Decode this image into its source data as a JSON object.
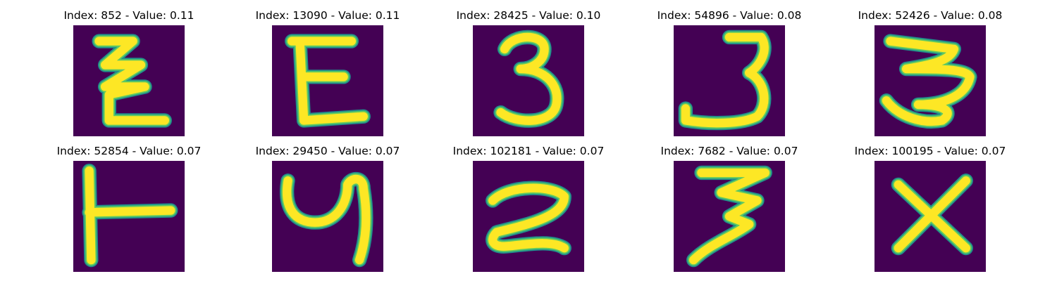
{
  "colors": {
    "background": "#440154",
    "halo": "#21908c",
    "mid": "#5ec962",
    "stroke": "#fde725"
  },
  "panels": [
    {
      "title": "Index: 852 - Value: 0.11",
      "glyph": "Z"
    },
    {
      "title": "Index: 13090 - Value: 0.11",
      "glyph": "E"
    },
    {
      "title": "Index: 28425 - Value: 0.10",
      "glyph": "3"
    },
    {
      "title": "Index: 54896 - Value: 0.08",
      "glyph": "3"
    },
    {
      "title": "Index: 52426 - Value: 0.08",
      "glyph": "3"
    },
    {
      "title": "Index: 52854 - Value: 0.07",
      "glyph": "T"
    },
    {
      "title": "Index: 29450 - Value: 0.07",
      "glyph": "y"
    },
    {
      "title": "Index: 102181 - Value: 0.07",
      "glyph": "2"
    },
    {
      "title": "Index: 7682 - Value: 0.07",
      "glyph": "3"
    },
    {
      "title": "Index: 100195 - Value: 0.07",
      "glyph": "X"
    }
  ]
}
